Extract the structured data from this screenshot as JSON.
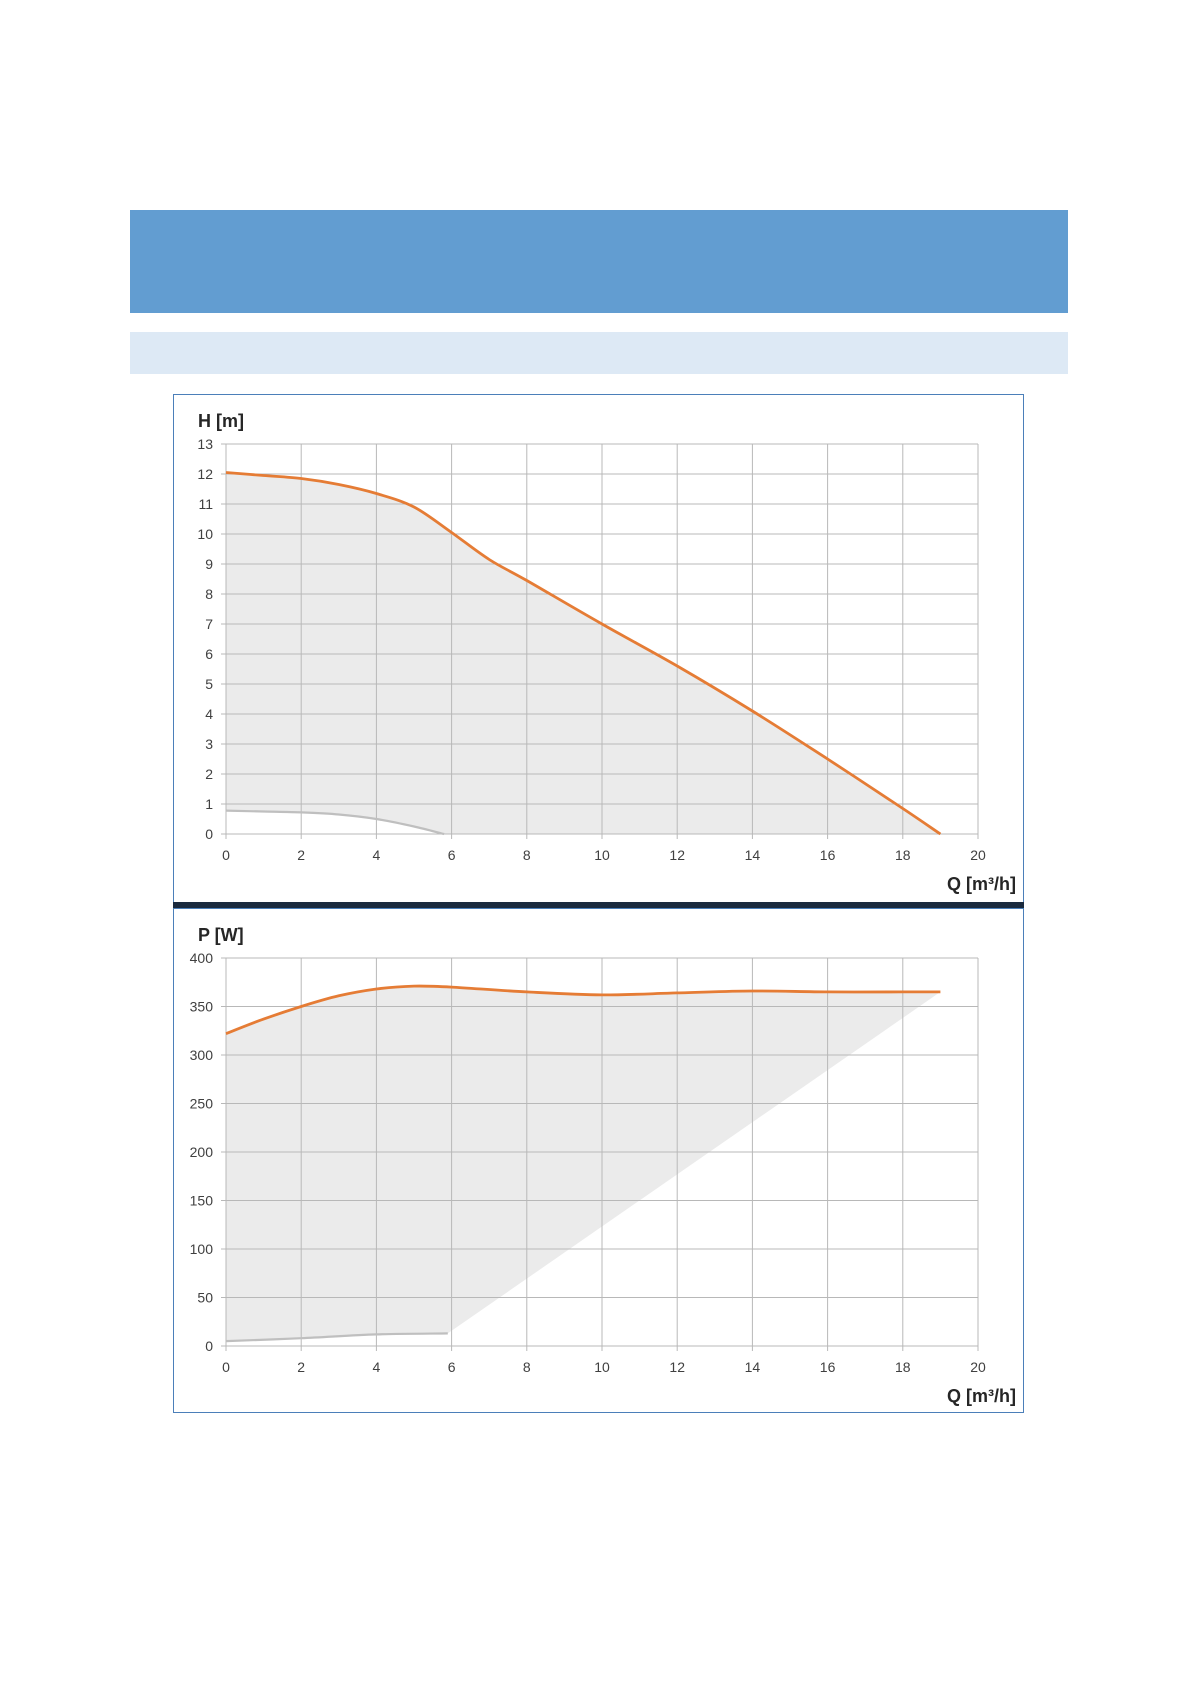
{
  "colors": {
    "header_band": "#629dd1",
    "subheader_band": "#dde9f5",
    "frame_border": "#4b7fb9",
    "max_curve": "#e57c35",
    "min_curve": "#bfbfbf",
    "operating_area": "#ebebeb",
    "grid": "#b8b8b8"
  },
  "chart_data": [
    {
      "type": "line",
      "ylabel": "H [m]",
      "xlabel": "Q [m³/h]",
      "xlim": [
        0,
        20
      ],
      "ylim": [
        0,
        13
      ],
      "xticks": [
        0,
        2,
        4,
        6,
        8,
        10,
        12,
        14,
        16,
        18,
        20
      ],
      "yticks": [
        0,
        1,
        2,
        3,
        4,
        5,
        6,
        7,
        8,
        9,
        10,
        11,
        12,
        13
      ],
      "grid": true,
      "shaded_area": "between curves",
      "series": [
        {
          "role": "max",
          "color": "#e57c35",
          "x": [
            0,
            1,
            2,
            3,
            4,
            5,
            6,
            7,
            8,
            10,
            12,
            14,
            16,
            18,
            19
          ],
          "y": [
            12.05,
            11.95,
            11.85,
            11.65,
            11.35,
            10.9,
            10.05,
            9.15,
            8.45,
            7.0,
            5.6,
            4.1,
            2.5,
            0.85,
            0
          ]
        },
        {
          "role": "min",
          "color": "#bfbfbf",
          "x": [
            0,
            1,
            2,
            3,
            4,
            5,
            5.8
          ],
          "y": [
            0.78,
            0.75,
            0.72,
            0.65,
            0.5,
            0.25,
            0
          ]
        }
      ]
    },
    {
      "type": "line",
      "ylabel": "P [W]",
      "xlabel": "Q [m³/h]",
      "xlim": [
        0,
        20
      ],
      "ylim": [
        0,
        400
      ],
      "xticks": [
        0,
        2,
        4,
        6,
        8,
        10,
        12,
        14,
        16,
        18,
        20
      ],
      "yticks": [
        0,
        50,
        100,
        150,
        200,
        250,
        300,
        350,
        400
      ],
      "grid": true,
      "shaded_area": "between curves",
      "series": [
        {
          "role": "max",
          "color": "#e57c35",
          "x": [
            0,
            1,
            2,
            3,
            4,
            5,
            6,
            8,
            10,
            12,
            14,
            16,
            18,
            19
          ],
          "y": [
            322,
            337,
            350,
            361,
            368,
            371,
            370,
            365,
            362,
            364,
            366,
            365,
            365,
            365
          ]
        },
        {
          "role": "min",
          "color": "#bfbfbf",
          "x": [
            0,
            2,
            4,
            5.9
          ],
          "y": [
            5,
            8,
            12,
            13
          ]
        }
      ],
      "area_lower_edge": {
        "x": [
          0,
          2,
          4,
          5.9,
          19
        ],
        "y": [
          5,
          8,
          12,
          13,
          365
        ]
      }
    }
  ]
}
